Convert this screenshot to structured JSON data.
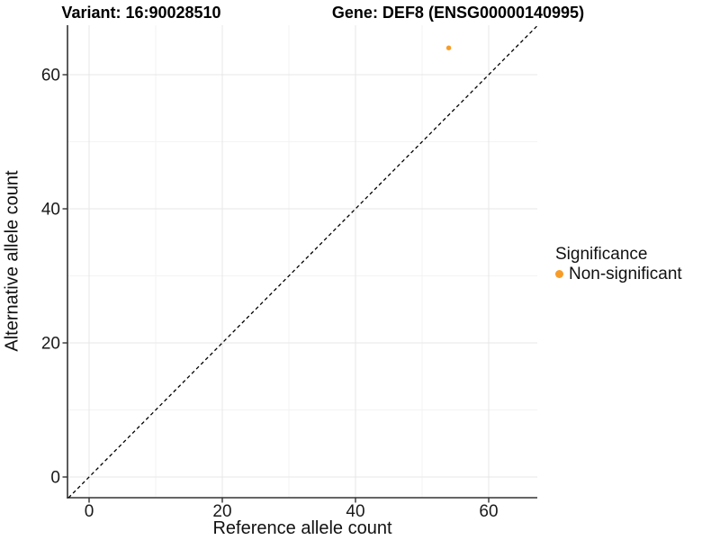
{
  "figure": {
    "title_variant": "Variant: 16:90028510",
    "title_gene": "Gene: DEF8 (ENSG00000140995)"
  },
  "axes": {
    "x": {
      "label": "Reference allele count",
      "tick_labels": [
        "0",
        "20",
        "40",
        "60"
      ]
    },
    "y": {
      "label": "Alternative allele count",
      "tick_labels": [
        "0",
        "20",
        "40",
        "60"
      ]
    }
  },
  "legend": {
    "title": "Significance",
    "items": [
      {
        "label": "Non-significant",
        "color": "#F89C28",
        "marker": "circle-icon"
      }
    ]
  },
  "colors": {
    "point": "#F89C28",
    "axis_line": "#333333",
    "tick_text": "#1a1a1a",
    "grid_major": "#e7e7e7",
    "grid_minor": "#f3f3f3",
    "reference_line": "#000000",
    "background": "#ffffff"
  },
  "chart_data": {
    "type": "scatter",
    "title": "Variant: 16:90028510 — Gene: DEF8 (ENSG00000140995)",
    "xlabel": "Reference allele count",
    "ylabel": "Alternative allele count",
    "xlim": [
      -3.2,
      67.3
    ],
    "ylim": [
      -3.1,
      67.4
    ],
    "xticks": [
      0,
      20,
      40,
      60
    ],
    "yticks": [
      0,
      20,
      40,
      60
    ],
    "minor_ticks_x": [
      10,
      30,
      50
    ],
    "minor_ticks_y": [
      10,
      30,
      50
    ],
    "grid": true,
    "legend_position": "right",
    "series": [
      {
        "name": "Non-significant",
        "color": "#F89C28",
        "points": [
          [
            54,
            64
          ]
        ]
      }
    ],
    "reference_line": {
      "kind": "identity",
      "slope": 1,
      "intercept": 0,
      "style": "dashed",
      "color": "#000000"
    }
  }
}
